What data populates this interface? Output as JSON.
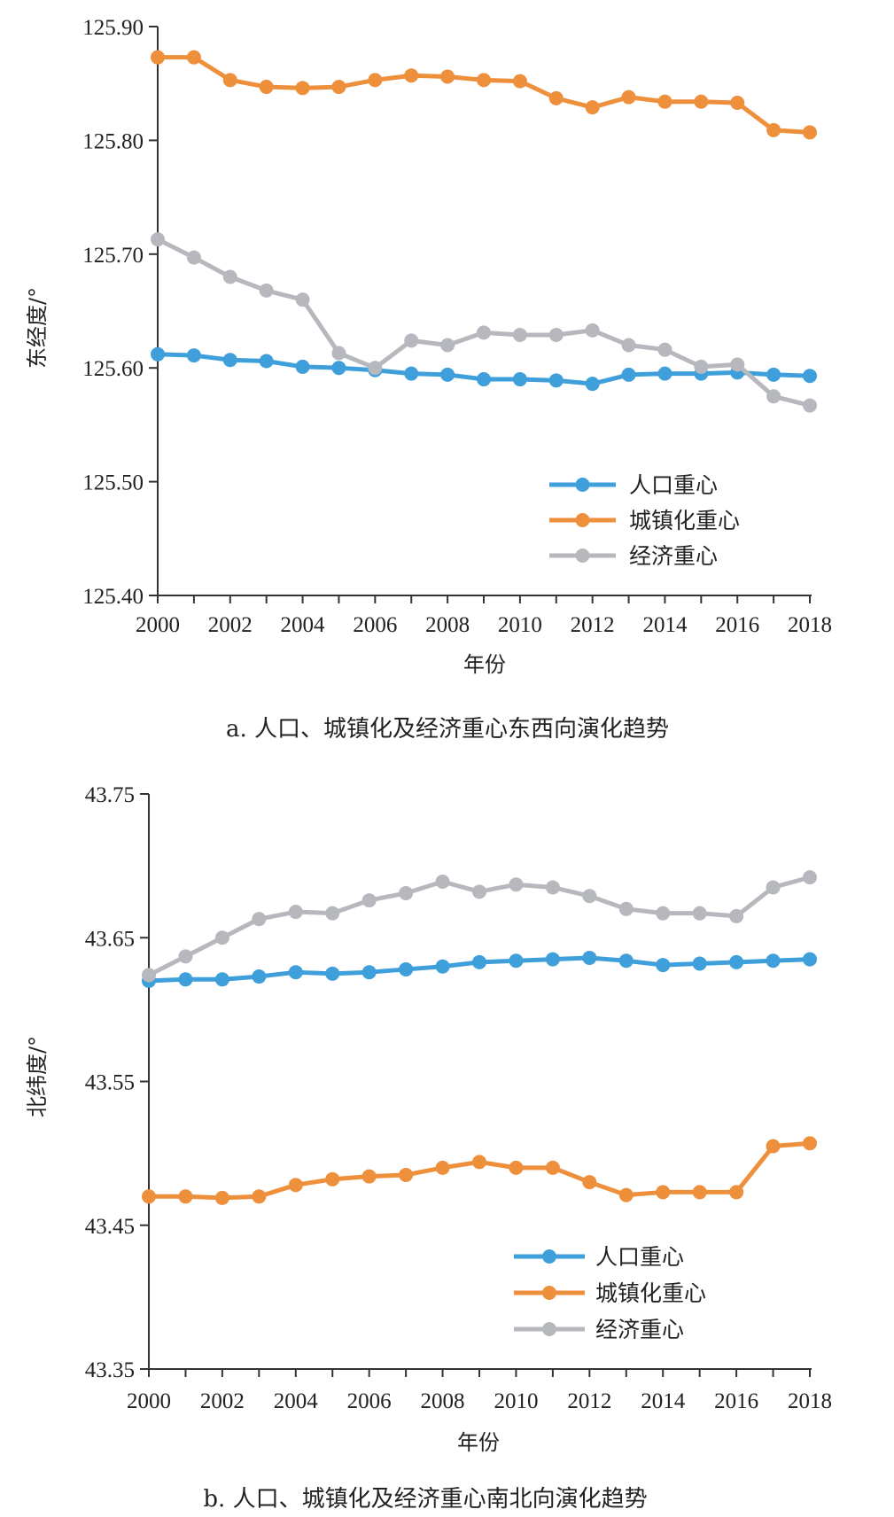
{
  "chart_data": [
    {
      "type": "line",
      "caption": "a. 人口、城镇化及经济重心东西向演化趋势",
      "xlabel": "年份",
      "ylabel": "东经度/°",
      "ylim": [
        125.4,
        125.9
      ],
      "yticks": [
        "125.40",
        "125.50",
        "125.60",
        "125.70",
        "125.80",
        "125.90"
      ],
      "xticks": [
        "2000",
        "2002",
        "2004",
        "2006",
        "2008",
        "2010",
        "2012",
        "2014",
        "2016",
        "2018"
      ],
      "x": [
        2000,
        2001,
        2002,
        2003,
        2004,
        2005,
        2006,
        2007,
        2008,
        2009,
        2010,
        2011,
        2012,
        2013,
        2014,
        2015,
        2016,
        2017,
        2018
      ],
      "legend_position": "bottom-right",
      "series": [
        {
          "name": "人口重心",
          "color": "#3f9fdb",
          "values": [
            125.612,
            125.611,
            125.607,
            125.606,
            125.601,
            125.6,
            125.598,
            125.595,
            125.594,
            125.59,
            125.59,
            125.589,
            125.586,
            125.594,
            125.595,
            125.595,
            125.596,
            125.594,
            125.593
          ]
        },
        {
          "name": "城镇化重心",
          "color": "#ee8f3c",
          "values": [
            125.873,
            125.873,
            125.853,
            125.847,
            125.846,
            125.847,
            125.853,
            125.857,
            125.856,
            125.853,
            125.852,
            125.837,
            125.829,
            125.838,
            125.834,
            125.834,
            125.833,
            125.809,
            125.807
          ]
        },
        {
          "name": "经济重心",
          "color": "#b6b8bd",
          "values": [
            125.713,
            125.697,
            125.68,
            125.668,
            125.66,
            125.613,
            125.6,
            125.624,
            125.62,
            125.631,
            125.629,
            125.629,
            125.633,
            125.62,
            125.616,
            125.601,
            125.603,
            125.575,
            125.567
          ]
        }
      ]
    },
    {
      "type": "line",
      "caption": "b. 人口、城镇化及经济重心南北向演化趋势",
      "xlabel": "年份",
      "ylabel": "北纬度/°",
      "ylim": [
        43.35,
        43.75
      ],
      "yticks": [
        "43.35",
        "43.45",
        "43.55",
        "43.65",
        "43.75"
      ],
      "xticks": [
        "2000",
        "2002",
        "2004",
        "2006",
        "2008",
        "2010",
        "2012",
        "2014",
        "2016",
        "2018"
      ],
      "x": [
        2000,
        2001,
        2002,
        2003,
        2004,
        2005,
        2006,
        2007,
        2008,
        2009,
        2010,
        2011,
        2012,
        2013,
        2014,
        2015,
        2016,
        2017,
        2018
      ],
      "legend_position": "bottom-right",
      "series": [
        {
          "name": "人口重心",
          "color": "#3f9fdb",
          "values": [
            43.62,
            43.621,
            43.621,
            43.623,
            43.626,
            43.625,
            43.626,
            43.628,
            43.63,
            43.633,
            43.634,
            43.635,
            43.636,
            43.634,
            43.631,
            43.632,
            43.633,
            43.634,
            43.635
          ]
        },
        {
          "name": "城镇化重心",
          "color": "#ee8f3c",
          "values": [
            43.47,
            43.47,
            43.469,
            43.47,
            43.478,
            43.482,
            43.484,
            43.485,
            43.49,
            43.494,
            43.49,
            43.49,
            43.48,
            43.471,
            43.473,
            43.473,
            43.473,
            43.505,
            43.507
          ]
        },
        {
          "name": "经济重心",
          "color": "#b6b8bd",
          "values": [
            43.624,
            43.637,
            43.65,
            43.663,
            43.668,
            43.667,
            43.676,
            43.681,
            43.689,
            43.682,
            43.687,
            43.685,
            43.679,
            43.67,
            43.667,
            43.667,
            43.665,
            43.685,
            43.692
          ]
        }
      ]
    }
  ]
}
